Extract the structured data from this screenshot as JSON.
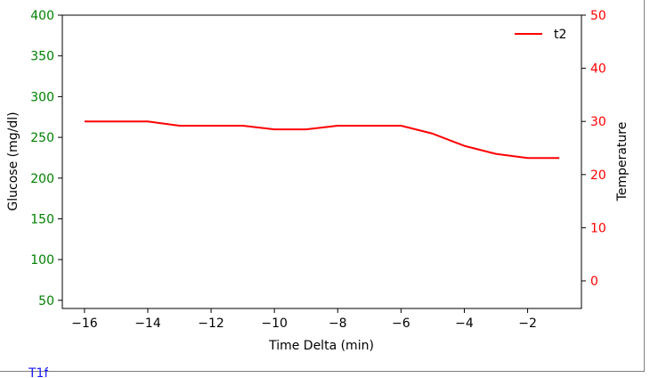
{
  "chart_data": {
    "type": "line",
    "xlabel": "Time Delta (min)",
    "ylabel_left": "Glucose (mg/dl)",
    "ylabel_right": "Temperature",
    "xlim": [
      -16.7,
      -0.3
    ],
    "ylim_left": [
      40,
      400
    ],
    "ylim_right": [
      -5.2,
      50
    ],
    "x_ticks": [
      -16,
      -14,
      -12,
      -10,
      -8,
      -6,
      -4,
      -2
    ],
    "x_tick_labels": [
      "−16",
      "−14",
      "−12",
      "−10",
      "−8",
      "−6",
      "−4",
      "−2"
    ],
    "y_left_ticks": [
      50,
      100,
      150,
      200,
      250,
      300,
      350,
      400
    ],
    "y_right_ticks": [
      0,
      10,
      20,
      30,
      40,
      50
    ],
    "colors": {
      "left_axis": "#008000",
      "right_axis": "#ff0000",
      "series": "#ff0000"
    },
    "grid": false,
    "legend_placement": "top-right",
    "series": [
      {
        "name": "t2",
        "axis": "right",
        "x": [
          -16,
          -15,
          -14,
          -13,
          -12,
          -11,
          -10,
          -9,
          -8,
          -7,
          -6,
          -5,
          -4,
          -3,
          -2,
          -1
        ],
        "values": [
          30,
          30,
          30,
          29.2,
          29.2,
          29.2,
          28.5,
          28.5,
          29.2,
          29.2,
          29.2,
          27.7,
          25.4,
          23.9,
          23.1,
          23.1
        ]
      }
    ]
  },
  "cut_text": "T1f"
}
